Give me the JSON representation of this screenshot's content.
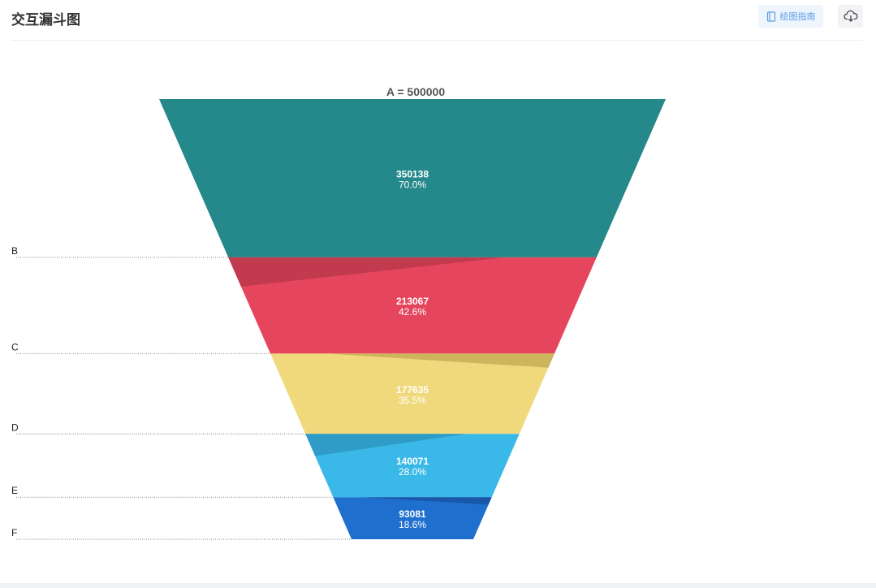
{
  "header": {
    "title": "交互漏斗图",
    "guide_label": "绘图指南",
    "guide_icon": "book-icon",
    "download_icon": "cloud-download-icon"
  },
  "chart_data": {
    "type": "funnel",
    "title": "",
    "top_label": "A = 500000",
    "stages": [
      {
        "label": "B",
        "value": 350138,
        "percent": "70.0%",
        "color": "#25888a",
        "shadow": "#1f6f70"
      },
      {
        "label": "C",
        "value": 213067,
        "percent": "42.6%",
        "color": "#e6455e",
        "shadow": "#c13a4e"
      },
      {
        "label": "D",
        "value": 177635,
        "percent": "35.5%",
        "color": "#f0d97c",
        "shadow": "#cdb55e"
      },
      {
        "label": "E",
        "value": 140071,
        "percent": "28.0%",
        "color": "#3ab9e8",
        "shadow": "#2e9cc6"
      },
      {
        "label": "F",
        "value": 93081,
        "percent": "18.6%",
        "color": "#1f6fcf",
        "shadow": "#1957a8"
      }
    ]
  }
}
